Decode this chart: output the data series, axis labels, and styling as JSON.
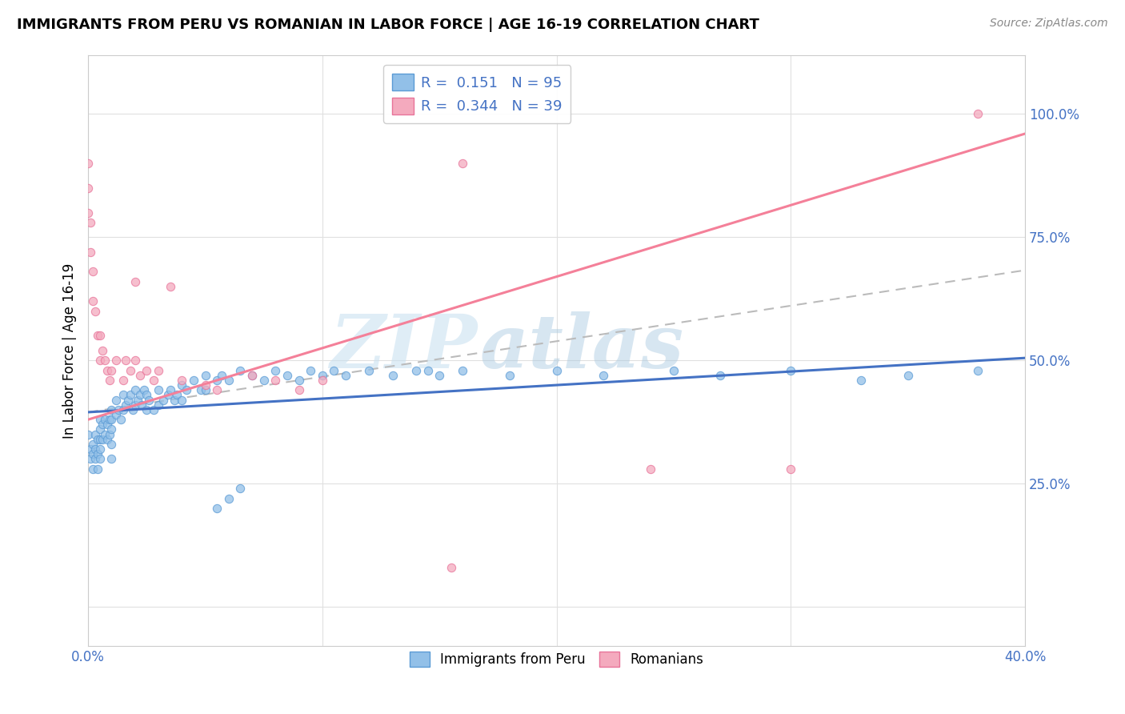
{
  "title": "IMMIGRANTS FROM PERU VS ROMANIAN IN LABOR FORCE | AGE 16-19 CORRELATION CHART",
  "source": "Source: ZipAtlas.com",
  "ylabel": "In Labor Force | Age 16-19",
  "xlim": [
    0.0,
    0.4
  ],
  "ylim": [
    -0.08,
    1.12
  ],
  "xticks": [
    0.0,
    0.1,
    0.2,
    0.3,
    0.4
  ],
  "xtick_labels": [
    "0.0%",
    "",
    "",
    "",
    "40.0%"
  ],
  "yticks": [
    0.0,
    0.25,
    0.5,
    0.75,
    1.0
  ],
  "ytick_labels": [
    "",
    "25.0%",
    "50.0%",
    "75.0%",
    "100.0%"
  ],
  "peru_color": "#92C0E8",
  "peru_edge_color": "#5B9BD5",
  "romania_color": "#F4AABE",
  "romania_edge_color": "#E8749A",
  "peru_line_color": "#4472C4",
  "peru_line_intercept": 0.395,
  "peru_line_slope": 0.275,
  "romania_line_color": "#F48099",
  "romania_line_intercept": 0.38,
  "romania_line_slope": 1.45,
  "dashed_line_color": "#BBBBBB",
  "dashed_line_intercept": 0.395,
  "dashed_line_slope": 0.72,
  "R_peru": 0.151,
  "N_peru": 95,
  "R_romania": 0.344,
  "N_romania": 39,
  "legend1_label": "Immigrants from Peru",
  "legend2_label": "Romanians",
  "watermark_text": "ZIP",
  "watermark_text2": "atlas",
  "watermark_color": "#C5DFF0",
  "background_color": "#FFFFFF",
  "grid_color": "#E0E0E0",
  "title_color": "#000000",
  "source_color": "#888888",
  "tick_color": "#4472C4",
  "ylabel_color": "#000000",
  "peru_scatter_x": [
    0.0,
    0.001,
    0.001,
    0.002,
    0.002,
    0.002,
    0.003,
    0.003,
    0.003,
    0.004,
    0.004,
    0.004,
    0.005,
    0.005,
    0.005,
    0.005,
    0.005,
    0.006,
    0.006,
    0.007,
    0.007,
    0.008,
    0.008,
    0.009,
    0.009,
    0.01,
    0.01,
    0.01,
    0.01,
    0.01,
    0.012,
    0.012,
    0.013,
    0.014,
    0.015,
    0.015,
    0.016,
    0.017,
    0.018,
    0.019,
    0.02,
    0.02,
    0.021,
    0.022,
    0.023,
    0.024,
    0.025,
    0.025,
    0.026,
    0.028,
    0.03,
    0.03,
    0.032,
    0.034,
    0.035,
    0.037,
    0.038,
    0.04,
    0.04,
    0.042,
    0.045,
    0.048,
    0.05,
    0.05,
    0.055,
    0.057,
    0.06,
    0.065,
    0.07,
    0.075,
    0.08,
    0.085,
    0.09,
    0.095,
    0.1,
    0.105,
    0.11,
    0.12,
    0.13,
    0.14,
    0.145,
    0.15,
    0.16,
    0.18,
    0.2,
    0.22,
    0.25,
    0.27,
    0.3,
    0.33,
    0.35,
    0.38,
    0.055,
    0.06,
    0.065
  ],
  "peru_scatter_y": [
    0.35,
    0.32,
    0.3,
    0.33,
    0.31,
    0.28,
    0.35,
    0.32,
    0.3,
    0.34,
    0.31,
    0.28,
    0.38,
    0.36,
    0.34,
    0.32,
    0.3,
    0.37,
    0.34,
    0.38,
    0.35,
    0.37,
    0.34,
    0.38,
    0.35,
    0.4,
    0.38,
    0.36,
    0.33,
    0.3,
    0.42,
    0.39,
    0.4,
    0.38,
    0.43,
    0.4,
    0.41,
    0.42,
    0.43,
    0.4,
    0.44,
    0.41,
    0.42,
    0.43,
    0.41,
    0.44,
    0.43,
    0.4,
    0.42,
    0.4,
    0.44,
    0.41,
    0.42,
    0.43,
    0.44,
    0.42,
    0.43,
    0.45,
    0.42,
    0.44,
    0.46,
    0.44,
    0.47,
    0.44,
    0.46,
    0.47,
    0.46,
    0.48,
    0.47,
    0.46,
    0.48,
    0.47,
    0.46,
    0.48,
    0.47,
    0.48,
    0.47,
    0.48,
    0.47,
    0.48,
    0.48,
    0.47,
    0.48,
    0.47,
    0.48,
    0.47,
    0.48,
    0.47,
    0.48,
    0.46,
    0.47,
    0.48,
    0.2,
    0.22,
    0.24
  ],
  "romania_scatter_x": [
    0.0,
    0.0,
    0.0,
    0.001,
    0.001,
    0.002,
    0.002,
    0.003,
    0.004,
    0.005,
    0.005,
    0.006,
    0.007,
    0.008,
    0.009,
    0.01,
    0.012,
    0.015,
    0.016,
    0.018,
    0.02,
    0.022,
    0.025,
    0.028,
    0.03,
    0.035,
    0.04,
    0.05,
    0.055,
    0.07,
    0.08,
    0.09,
    0.1,
    0.155,
    0.16,
    0.24,
    0.3,
    0.38,
    0.02
  ],
  "romania_scatter_y": [
    0.9,
    0.85,
    0.8,
    0.78,
    0.72,
    0.68,
    0.62,
    0.6,
    0.55,
    0.55,
    0.5,
    0.52,
    0.5,
    0.48,
    0.46,
    0.48,
    0.5,
    0.46,
    0.5,
    0.48,
    0.5,
    0.47,
    0.48,
    0.46,
    0.48,
    0.65,
    0.46,
    0.45,
    0.44,
    0.47,
    0.46,
    0.44,
    0.46,
    0.08,
    0.9,
    0.28,
    0.28,
    1.0,
    0.66
  ]
}
